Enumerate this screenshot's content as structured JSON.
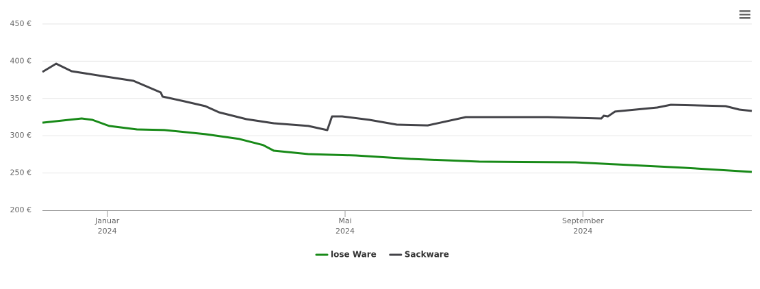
{
  "chart_data": {
    "type": "line",
    "xlim": [
      -1.09,
      10.84
    ],
    "xticks": [
      {
        "value": 0,
        "label": "Januar 2024"
      },
      {
        "value": 4,
        "label": "Mai 2024"
      },
      {
        "value": 8,
        "label": "September 2024"
      }
    ],
    "ylim": [
      200,
      450
    ],
    "yticks": [
      {
        "value": 200,
        "label": "200 €"
      },
      {
        "value": 250,
        "label": "250 €"
      },
      {
        "value": 300,
        "label": "300 €"
      },
      {
        "value": 350,
        "label": "350 €"
      },
      {
        "value": 400,
        "label": "400 €"
      },
      {
        "value": 450,
        "label": "450 €"
      }
    ],
    "grid": true,
    "legend": "bottom",
    "series": [
      {
        "name": "lose Ware",
        "color": "#188a18",
        "x": [
          -1.09,
          -0.43,
          -0.25,
          0.03,
          0.5,
          0.96,
          1.65,
          2.22,
          2.62,
          2.8,
          3.38,
          4.18,
          5.1,
          6.26,
          7.87,
          8.56,
          9.71,
          10.84
        ],
        "values": [
          317.6,
          323.2,
          321.3,
          313.1,
          308.5,
          307.6,
          302.1,
          295.7,
          287.5,
          280.0,
          275.4,
          273.5,
          268.9,
          265.3,
          264.3,
          261.6,
          257.0,
          251.5
        ]
      },
      {
        "name": "Sackware",
        "color": "#434348",
        "x": [
          -1.09,
          -0.86,
          -0.6,
          -0.08,
          0.44,
          0.9,
          0.93,
          1.3,
          1.65,
          1.88,
          2.34,
          2.8,
          3.38,
          3.7,
          3.78,
          3.95,
          4.41,
          4.87,
          5.39,
          6.03,
          7.41,
          8.31,
          8.35,
          8.42,
          8.54,
          9.25,
          9.48,
          10.4,
          10.63,
          10.84
        ],
        "values": [
          385.7,
          396.7,
          386.6,
          380.1,
          373.7,
          358.1,
          352.6,
          346.1,
          339.7,
          331.4,
          322.2,
          316.7,
          313.1,
          307.5,
          325.9,
          325.9,
          321.3,
          314.9,
          313.9,
          325.0,
          325.0,
          323.2,
          326.8,
          325.9,
          332.4,
          337.9,
          341.5,
          339.7,
          335.1,
          333.3
        ]
      }
    ]
  }
}
